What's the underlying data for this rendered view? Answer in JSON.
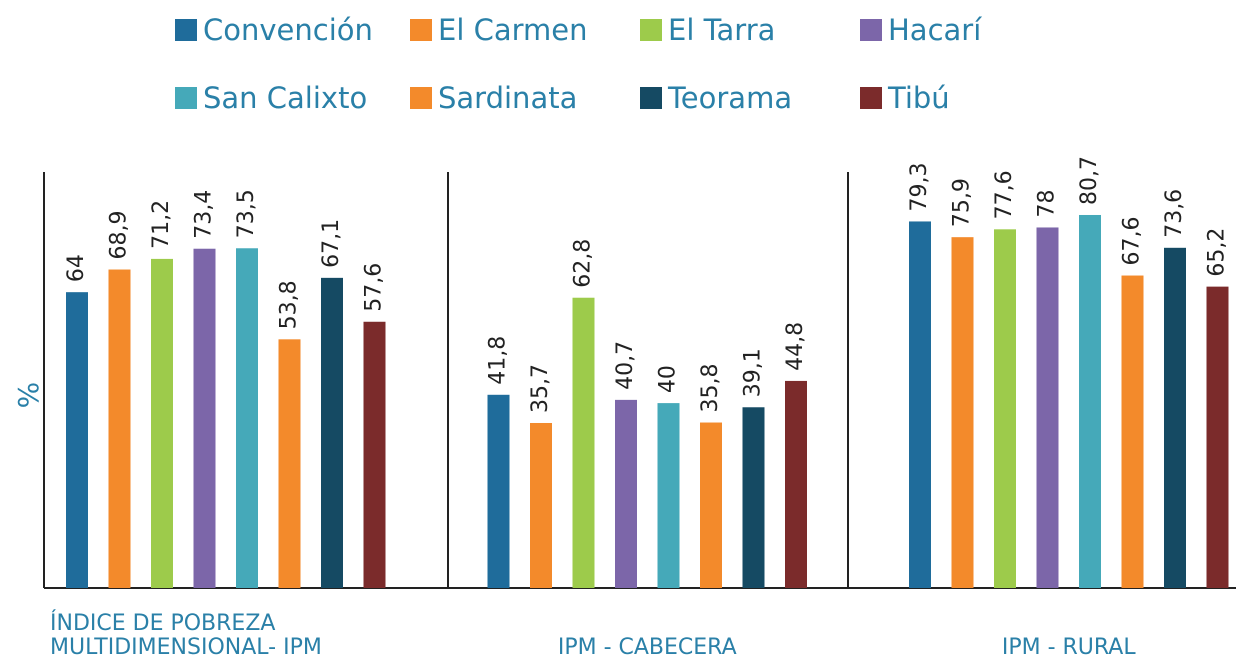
{
  "chart_data": {
    "type": "bar",
    "ylabel": "%",
    "categories": [
      "ÍNDICE DE POBREZA\nMULTIDIMENSIONAL- IPM",
      "IPM - CABECERA",
      "IPM - RURAL"
    ],
    "ylim": [
      0,
      90
    ],
    "series": [
      {
        "name": "Convención",
        "color": "#1f6c9b",
        "values": [
          64,
          41.8,
          79.3
        ],
        "value_labels": [
          "64",
          "41,8",
          "79,3"
        ]
      },
      {
        "name": "El Carmen",
        "color": "#f38a2b",
        "values": [
          68.9,
          35.7,
          75.9
        ],
        "value_labels": [
          "68,9",
          "35,7",
          "75,9"
        ]
      },
      {
        "name": "El Tarra",
        "color": "#9dcb4b",
        "values": [
          71.2,
          62.8,
          77.6
        ],
        "value_labels": [
          "71,2",
          "62,8",
          "77,6"
        ]
      },
      {
        "name": "Hacarí",
        "color": "#7c66a9",
        "values": [
          73.4,
          40.7,
          78
        ],
        "value_labels": [
          "73,4",
          "40,7",
          "78"
        ]
      },
      {
        "name": "San Calixto",
        "color": "#45a9b9",
        "values": [
          73.5,
          40,
          80.7
        ],
        "value_labels": [
          "73,5",
          "40",
          "80,7"
        ]
      },
      {
        "name": "Sardinata",
        "color": "#f38a2b",
        "values": [
          53.8,
          35.8,
          67.6
        ],
        "value_labels": [
          "53,8",
          "35,8",
          "67,6"
        ]
      },
      {
        "name": "Teorama",
        "color": "#154a63",
        "values": [
          67.1,
          39.1,
          73.6
        ],
        "value_labels": [
          "67,1",
          "39,1",
          "73,6"
        ]
      },
      {
        "name": "Tibú",
        "color": "#7b2b2b",
        "values": [
          57.6,
          44.8,
          65.2
        ],
        "value_labels": [
          "57,6",
          "44,8",
          "65,2"
        ]
      }
    ]
  }
}
